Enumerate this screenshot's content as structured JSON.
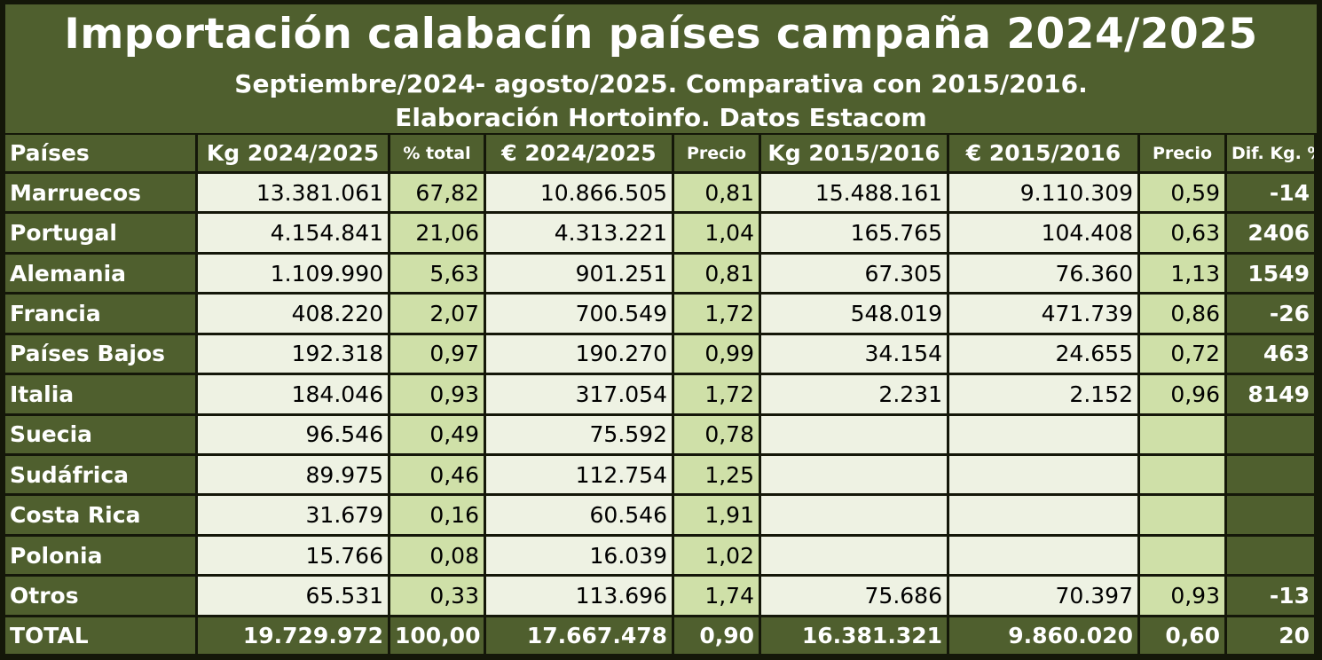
{
  "header": {
    "title": "Importación calabacín países campaña 2024/2025",
    "subtitle1": "Septiembre/2024- agosto/2025. Comparativa con 2015/2016.",
    "subtitle2": "Elaboración Hortoinfo. Datos Estacom"
  },
  "columns": [
    "Países",
    "Kg 2024/2025",
    "% total",
    "€ 2024/2025",
    "Precio",
    "Kg 2015/2016",
    "€ 2015/2016",
    "Precio",
    "Dif. Kg. %"
  ],
  "rows": [
    {
      "country": "Marruecos",
      "kg2425": "13.381.061",
      "pct": "67,82",
      "eur2425": "10.866.505",
      "precio2425": "0,81",
      "kg1516": "15.488.161",
      "eur1516": "9.110.309",
      "precio1516": "0,59",
      "dif": "-14"
    },
    {
      "country": "Portugal",
      "kg2425": "4.154.841",
      "pct": "21,06",
      "eur2425": "4.313.221",
      "precio2425": "1,04",
      "kg1516": "165.765",
      "eur1516": "104.408",
      "precio1516": "0,63",
      "dif": "2406"
    },
    {
      "country": "Alemania",
      "kg2425": "1.109.990",
      "pct": "5,63",
      "eur2425": "901.251",
      "precio2425": "0,81",
      "kg1516": "67.305",
      "eur1516": "76.360",
      "precio1516": "1,13",
      "dif": "1549"
    },
    {
      "country": "Francia",
      "kg2425": "408.220",
      "pct": "2,07",
      "eur2425": "700.549",
      "precio2425": "1,72",
      "kg1516": "548.019",
      "eur1516": "471.739",
      "precio1516": "0,86",
      "dif": "-26"
    },
    {
      "country": "Países Bajos",
      "kg2425": "192.318",
      "pct": "0,97",
      "eur2425": "190.270",
      "precio2425": "0,99",
      "kg1516": "34.154",
      "eur1516": "24.655",
      "precio1516": "0,72",
      "dif": "463"
    },
    {
      "country": "Italia",
      "kg2425": "184.046",
      "pct": "0,93",
      "eur2425": "317.054",
      "precio2425": "1,72",
      "kg1516": "2.231",
      "eur1516": "2.152",
      "precio1516": "0,96",
      "dif": "8149"
    },
    {
      "country": "Suecia",
      "kg2425": "96.546",
      "pct": "0,49",
      "eur2425": "75.592",
      "precio2425": "0,78",
      "kg1516": "",
      "eur1516": "",
      "precio1516": "",
      "dif": ""
    },
    {
      "country": "Sudáfrica",
      "kg2425": "89.975",
      "pct": "0,46",
      "eur2425": "112.754",
      "precio2425": "1,25",
      "kg1516": "",
      "eur1516": "",
      "precio1516": "",
      "dif": ""
    },
    {
      "country": "Costa Rica",
      "kg2425": "31.679",
      "pct": "0,16",
      "eur2425": "60.546",
      "precio2425": "1,91",
      "kg1516": "",
      "eur1516": "",
      "precio1516": "",
      "dif": ""
    },
    {
      "country": "Polonia",
      "kg2425": "15.766",
      "pct": "0,08",
      "eur2425": "16.039",
      "precio2425": "1,02",
      "kg1516": "",
      "eur1516": "",
      "precio1516": "",
      "dif": ""
    },
    {
      "country": "Otros",
      "kg2425": "65.531",
      "pct": "0,33",
      "eur2425": "113.696",
      "precio2425": "1,74",
      "kg1516": "75.686",
      "eur1516": "70.397",
      "precio1516": "0,93",
      "dif": "-13"
    }
  ],
  "total": {
    "country": "TOTAL",
    "kg2425": "19.729.972",
    "pct": "100,00",
    "eur2425": "17.667.478",
    "precio2425": "0,90",
    "kg1516": "16.381.321",
    "eur1516": "9.860.020",
    "precio1516": "0,60",
    "dif": "20"
  },
  "colors": {
    "dark_green": "#4f5f2e",
    "light_cell": "#eef2e3",
    "mid_cell": "#cfe0a8",
    "border": "#141709"
  }
}
